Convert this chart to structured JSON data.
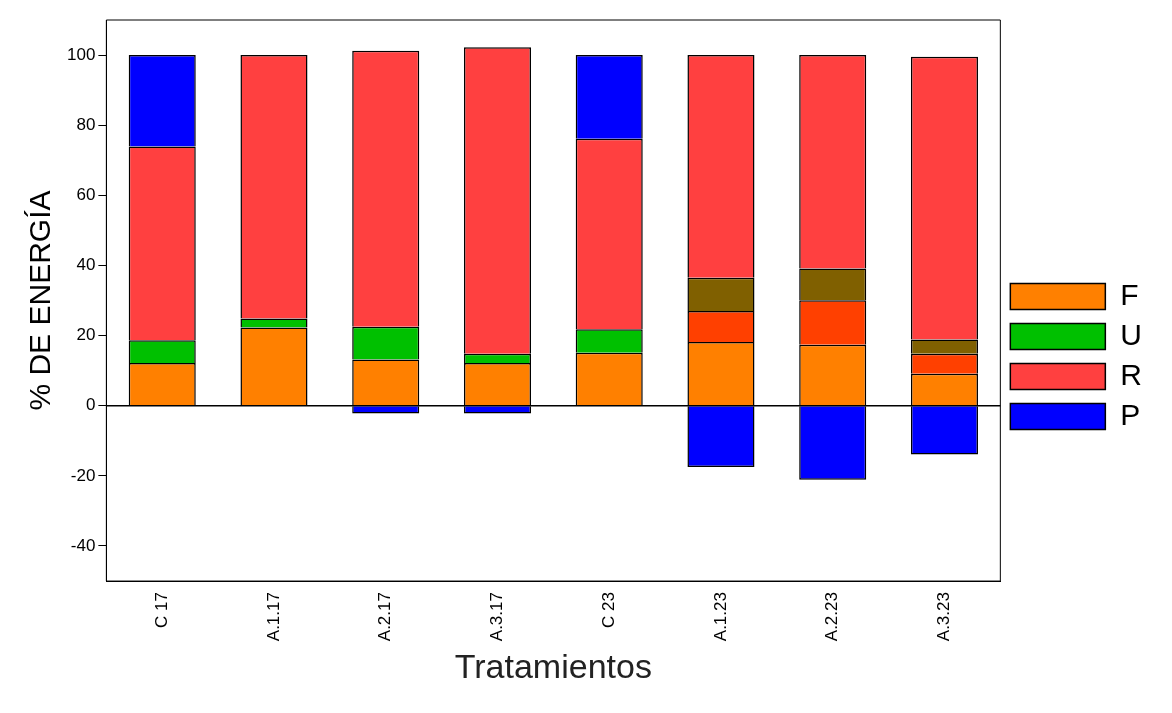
{
  "chart_data": {
    "type": "bar",
    "stacked": true,
    "xlabel": "Tratamientos",
    "ylabel": "% DE ENERGÍA",
    "categories": [
      "C 17",
      "A.1.17",
      "A.2.17",
      "A.3.17",
      "C 23",
      "A.1.23",
      "A.2.23",
      "A.3.23"
    ],
    "series": [
      {
        "name": "F",
        "color": "#ff8000",
        "values": [
          12.2,
          22.3,
          13.2,
          12.2,
          15.1,
          18.2,
          17.4,
          9.1
        ]
      },
      {
        "name": "U",
        "color": "#00c000",
        "values": [
          6.5,
          2.6,
          9.3,
          2.6,
          6.7,
          0,
          0,
          0
        ]
      },
      {
        "color": "#ff4000",
        "values": [
          0,
          0,
          0,
          0,
          0,
          8.8,
          12.7,
          5.7
        ]
      },
      {
        "color": "#806000",
        "values": [
          0,
          0,
          0,
          0,
          0,
          9.5,
          9.0,
          4.1
        ]
      },
      {
        "name": "R",
        "color": "#ff4040",
        "values": [
          55.2,
          75.1,
          78.7,
          87.4,
          54.3,
          63.5,
          60.9,
          80.6
        ]
      },
      {
        "name": "P",
        "color": "#0000ff",
        "values": [
          26.1,
          0,
          -2.2,
          -2.2,
          23.9,
          -17.5,
          -21.1,
          -13.9
        ]
      }
    ],
    "ylim": [
      -50,
      110
    ],
    "yticks": [
      -40,
      -20,
      0,
      20,
      40,
      60,
      80,
      100
    ],
    "ref_lines": [
      {
        "axis": "y",
        "value": 0,
        "color": "#000000"
      }
    ],
    "grid": false,
    "legend": "right"
  }
}
